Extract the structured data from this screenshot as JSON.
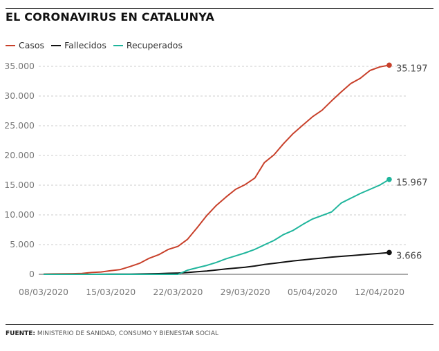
{
  "title": "EL CORONAVIRUS EN CATALUNYA",
  "source_label": "FUENTE:",
  "source_text": " MINISTERIO DE SANIDAD, CONSUMO Y BIENESTAR SOCIAL",
  "colors": {
    "casos": "#c8402a",
    "fallecidos": "#111111",
    "recuperados": "#1fb59c",
    "grid": "#cccccc",
    "axis_text": "#777777"
  },
  "chart_data": {
    "type": "line",
    "title": "EL CORONAVIRUS EN CATALUNYA",
    "x_ticks": [
      "08/03/2020",
      "15/03/2020",
      "22/03/2020",
      "29/03/2020",
      "05/04/2020",
      "12/04/2020"
    ],
    "y_ticks": [
      "0",
      "5.000",
      "10.000",
      "15.000",
      "20.000",
      "25.000",
      "30.000",
      "35.000"
    ],
    "ylim": [
      0,
      35000
    ],
    "legend_position": "top-left",
    "grid": "horizontal dashed",
    "x": [
      "08/03/2020",
      "09/03/2020",
      "10/03/2020",
      "11/03/2020",
      "12/03/2020",
      "13/03/2020",
      "14/03/2020",
      "15/03/2020",
      "16/03/2020",
      "17/03/2020",
      "18/03/2020",
      "19/03/2020",
      "20/03/2020",
      "21/03/2020",
      "22/03/2020",
      "23/03/2020",
      "24/03/2020",
      "25/03/2020",
      "26/03/2020",
      "27/03/2020",
      "28/03/2020",
      "29/03/2020",
      "30/03/2020",
      "31/03/2020",
      "01/04/2020",
      "02/04/2020",
      "03/04/2020",
      "04/04/2020",
      "05/04/2020",
      "06/04/2020",
      "07/04/2020",
      "08/04/2020",
      "09/04/2020",
      "10/04/2020",
      "11/04/2020",
      "12/04/2020",
      "13/04/2020"
    ],
    "series": [
      {
        "name": "Casos",
        "key": "casos",
        "end_label": "35.197",
        "values": [
          50,
          70,
          80,
          100,
          150,
          300,
          400,
          600,
          800,
          1300,
          1850,
          2700,
          3300,
          4200,
          4700,
          5900,
          7850,
          9900,
          11600,
          13000,
          14300,
          15100,
          16200,
          18800,
          20100,
          22000,
          23700,
          25100,
          26500,
          27600,
          29200,
          30700,
          32100,
          33000,
          34300,
          34900,
          35197
        ]
      },
      {
        "name": "Fallecidos",
        "key": "fallecidos",
        "end_label": "3.666",
        "values": [
          0,
          0,
          0,
          0,
          0,
          5,
          10,
          20,
          25,
          40,
          60,
          90,
          120,
          170,
          210,
          300,
          430,
          550,
          720,
          900,
          1050,
          1200,
          1400,
          1650,
          1850,
          2050,
          2250,
          2420,
          2580,
          2730,
          2890,
          3020,
          3140,
          3270,
          3400,
          3520,
          3666
        ]
      },
      {
        "name": "Recuperados",
        "key": "recuperados",
        "end_label": "15.967",
        "values": [
          0,
          0,
          0,
          0,
          0,
          0,
          0,
          0,
          0,
          0,
          0,
          0,
          0,
          0,
          0,
          700,
          1100,
          1500,
          2000,
          2600,
          3100,
          3600,
          4200,
          4950,
          5700,
          6700,
          7400,
          8400,
          9300,
          9900,
          10500,
          12000,
          12800,
          13600,
          14300,
          15000,
          15967
        ]
      }
    ]
  }
}
